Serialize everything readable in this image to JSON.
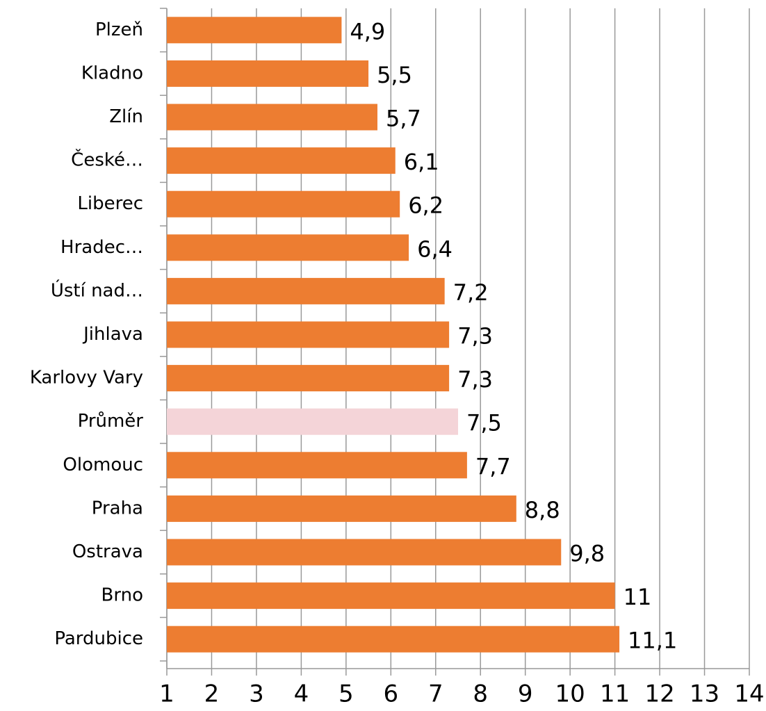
{
  "chart_data": {
    "type": "bar",
    "categories": [
      "Plzeň",
      "Kladno",
      "Zlín",
      "České…",
      "Liberec",
      "Hradec…",
      "Ústí nad…",
      "Jihlava",
      "Karlovy Vary",
      "Průměr",
      "Olomouc",
      "Praha",
      "Ostrava",
      "Brno",
      "Pardubice"
    ],
    "values": [
      4.9,
      5.5,
      5.7,
      6.1,
      6.2,
      6.4,
      7.2,
      7.3,
      7.3,
      7.5,
      7.7,
      8.8,
      9.8,
      11,
      11.1
    ],
    "value_labels": [
      "4,9",
      "5,5",
      "5,7",
      "6,1",
      "6,2",
      "6,4",
      "7,2",
      "7,3",
      "7,3",
      "7,5",
      "7,7",
      "8,8",
      "9,8",
      "11",
      "11,1"
    ],
    "colors": [
      "#ed7d31",
      "#ed7d31",
      "#ed7d31",
      "#ed7d31",
      "#ed7d31",
      "#ed7d31",
      "#ed7d31",
      "#ed7d31",
      "#ed7d31",
      "#f4d4d8",
      "#ed7d31",
      "#ed7d31",
      "#ed7d31",
      "#ed7d31",
      "#ed7d31"
    ],
    "xlim": [
      1,
      14
    ],
    "xticks": [
      1,
      2,
      3,
      4,
      5,
      6,
      7,
      8,
      9,
      10,
      11,
      12,
      13,
      14
    ],
    "grid": true
  }
}
